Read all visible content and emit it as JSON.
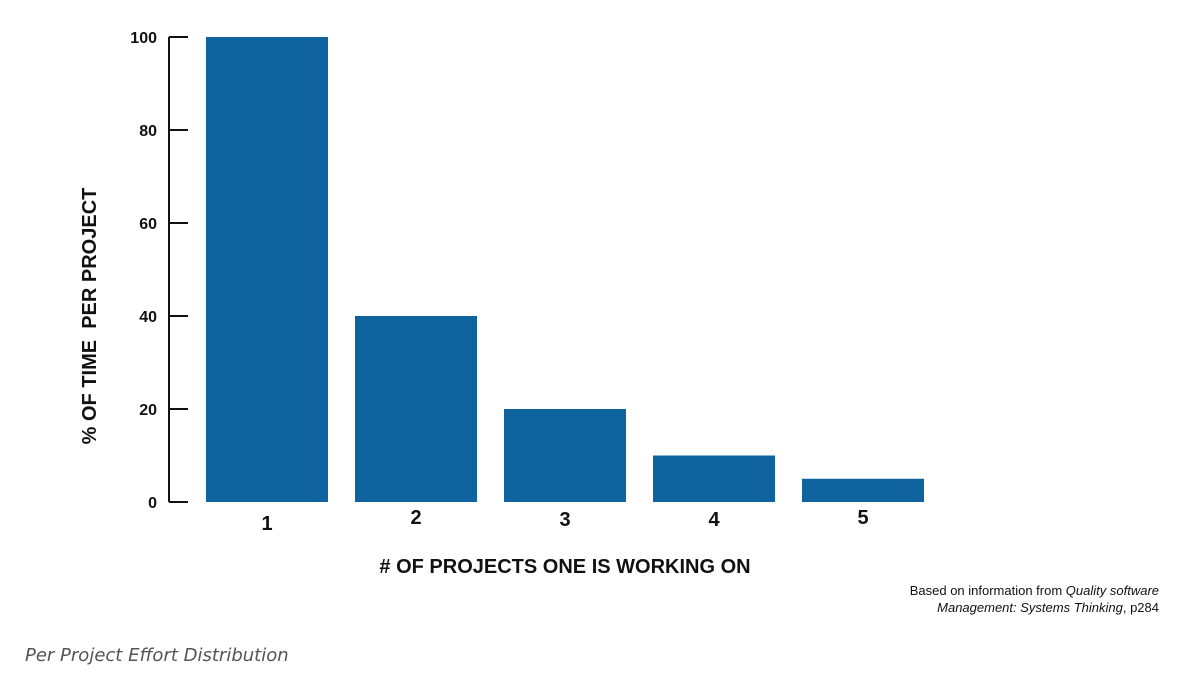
{
  "chart_data": {
    "type": "bar",
    "categories": [
      "1",
      "2",
      "3",
      "4",
      "5"
    ],
    "values": [
      100,
      40,
      20,
      10,
      5
    ],
    "xlabel": "# OF PROJECTS ONE IS WORKING ON",
    "ylabel": "% OF TIME  PER PROJECT",
    "ylim": [
      0,
      100
    ],
    "yticks": [
      0,
      20,
      40,
      60,
      80,
      100
    ],
    "grid": false,
    "bar_color": "#0f64a0"
  },
  "source_note": {
    "prefix": "Based on information from ",
    "title_part1": "Quality software",
    "title_part2": "Management: Systems Thinking",
    "suffix": ", p284"
  },
  "caption": "Per Project Effort Distribution"
}
